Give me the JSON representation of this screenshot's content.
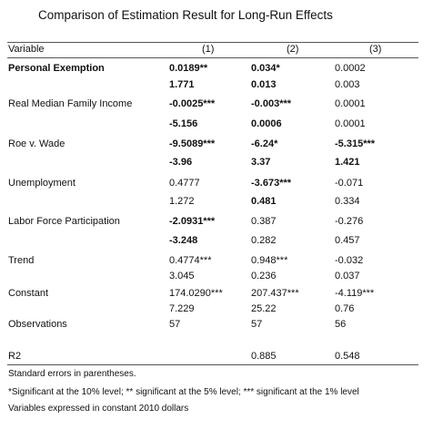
{
  "title": "Comparison of Estimation Result for Long-Run Effects",
  "header": {
    "variable": "Variable",
    "col1": "(1)",
    "col2": "(2)",
    "col3": "(3)"
  },
  "rows": {
    "personal_exemption": {
      "label": "Personal Exemption",
      "coef": [
        "0.0189**",
        "0.034*",
        "0.0002"
      ],
      "se": [
        "1.771",
        "0.013",
        "0.003"
      ]
    },
    "real_median_family_income": {
      "label": "Real Median Family Income",
      "coef": [
        "-0.0025***",
        "-0.003***",
        "0.0001"
      ],
      "se": [
        "-5.156",
        "0.0006",
        "0.0001"
      ]
    },
    "roe_v_wade": {
      "label": "Roe v. Wade",
      "coef": [
        "-9.5089***",
        "-6.24*",
        "-5.315***"
      ],
      "se": [
        "-3.96",
        "3.37",
        "1.421"
      ]
    },
    "unemployment": {
      "label": "Unemployment",
      "coef": [
        "0.4777",
        "-3.673***",
        "-0.071"
      ],
      "se": [
        "1.272",
        "0.481",
        "0.334"
      ]
    },
    "labor_force_participation": {
      "label": "Labor Force Participation",
      "coef": [
        "-2.0931***",
        "0.387",
        "-0.276"
      ],
      "se": [
        "-3.248",
        "0.282",
        "0.457"
      ]
    },
    "trend": {
      "label": "Trend",
      "coef": [
        "0.4774***",
        "0.948***",
        "-0.032"
      ],
      "se": [
        "3.045",
        "0.236",
        "0.037"
      ]
    },
    "constant": {
      "label": "Constant",
      "coef": [
        "174.0290***",
        "207.437***",
        "-4.119***"
      ],
      "se": [
        "7.229",
        "25.22",
        "0.76"
      ]
    },
    "observations": {
      "label": "Observations",
      "values": [
        "57",
        "57",
        "56"
      ]
    },
    "r2": {
      "label": "R2",
      "values": [
        "",
        "0.885",
        "0.548"
      ]
    }
  },
  "notes": {
    "line1": "Standard errors in parentheses.",
    "line2": "*Significant at the 10% level; ** significant at the 5% level; *** significant at the 1% level",
    "line3": " Variables expressed in constant 2010 dollars"
  }
}
